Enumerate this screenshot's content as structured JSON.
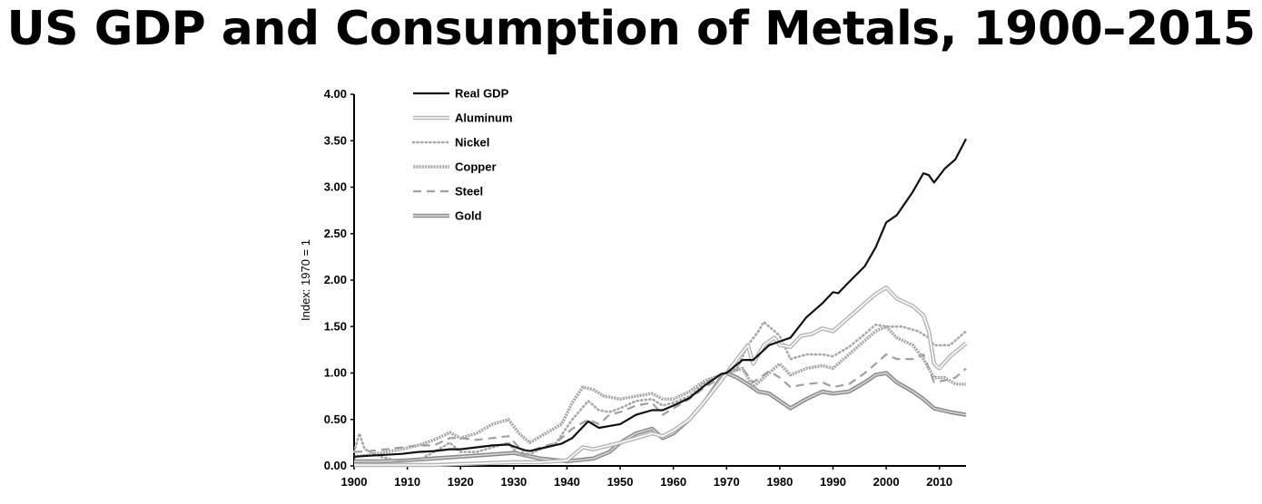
{
  "chart_data": {
    "type": "line",
    "title": "US GDP and Consumption of Metals, 1900–2015",
    "xlabel": "",
    "ylabel": "Index: 1970 = 1",
    "xlim": [
      1900,
      2015
    ],
    "ylim": [
      0,
      4
    ],
    "x_ticks": [
      "1900",
      "1910",
      "1920",
      "1930",
      "1940",
      "1950",
      "1960",
      "1970",
      "1980",
      "1990",
      "2000",
      "2010"
    ],
    "y_ticks": [
      "0.00",
      "0.50",
      "1.00",
      "1.50",
      "2.00",
      "2.50",
      "3.00",
      "3.50",
      "4.00"
    ],
    "grid": false,
    "legend_position": "top-left",
    "series": [
      {
        "name": "Real GDP",
        "style": "solid-black",
        "points": [
          [
            1900,
            0.1
          ],
          [
            1903,
            0.11
          ],
          [
            1906,
            0.12
          ],
          [
            1909,
            0.13
          ],
          [
            1912,
            0.15
          ],
          [
            1915,
            0.16
          ],
          [
            1918,
            0.18
          ],
          [
            1920,
            0.18
          ],
          [
            1923,
            0.2
          ],
          [
            1926,
            0.22
          ],
          [
            1929,
            0.23
          ],
          [
            1930,
            0.21
          ],
          [
            1932,
            0.17
          ],
          [
            1933,
            0.16
          ],
          [
            1936,
            0.2
          ],
          [
            1939,
            0.24
          ],
          [
            1941,
            0.3
          ],
          [
            1943,
            0.42
          ],
          [
            1944,
            0.48
          ],
          [
            1946,
            0.41
          ],
          [
            1948,
            0.43
          ],
          [
            1950,
            0.45
          ],
          [
            1953,
            0.55
          ],
          [
            1956,
            0.6
          ],
          [
            1958,
            0.6
          ],
          [
            1960,
            0.65
          ],
          [
            1963,
            0.73
          ],
          [
            1966,
            0.87
          ],
          [
            1969,
            0.99
          ],
          [
            1970,
            1.0
          ],
          [
            1973,
            1.14
          ],
          [
            1975,
            1.14
          ],
          [
            1978,
            1.3
          ],
          [
            1980,
            1.34
          ],
          [
            1982,
            1.38
          ],
          [
            1985,
            1.6
          ],
          [
            1988,
            1.75
          ],
          [
            1990,
            1.87
          ],
          [
            1991,
            1.86
          ],
          [
            1993,
            1.98
          ],
          [
            1996,
            2.15
          ],
          [
            1998,
            2.35
          ],
          [
            2000,
            2.62
          ],
          [
            2002,
            2.7
          ],
          [
            2005,
            2.95
          ],
          [
            2007,
            3.15
          ],
          [
            2008,
            3.13
          ],
          [
            2009,
            3.05
          ],
          [
            2011,
            3.2
          ],
          [
            2013,
            3.3
          ],
          [
            2015,
            3.52
          ]
        ]
      },
      {
        "name": "Aluminum",
        "style": "double-line",
        "points": [
          [
            1900,
            0.01
          ],
          [
            1905,
            0.01
          ],
          [
            1910,
            0.01
          ],
          [
            1915,
            0.01
          ],
          [
            1920,
            0.02
          ],
          [
            1925,
            0.03
          ],
          [
            1930,
            0.04
          ],
          [
            1935,
            0.04
          ],
          [
            1940,
            0.06
          ],
          [
            1943,
            0.2
          ],
          [
            1945,
            0.18
          ],
          [
            1948,
            0.22
          ],
          [
            1950,
            0.25
          ],
          [
            1953,
            0.3
          ],
          [
            1956,
            0.35
          ],
          [
            1958,
            0.32
          ],
          [
            1960,
            0.38
          ],
          [
            1963,
            0.5
          ],
          [
            1966,
            0.7
          ],
          [
            1969,
            0.92
          ],
          [
            1970,
            1.0
          ],
          [
            1972,
            1.15
          ],
          [
            1974,
            1.3
          ],
          [
            1975,
            1.1
          ],
          [
            1977,
            1.3
          ],
          [
            1979,
            1.38
          ],
          [
            1980,
            1.3
          ],
          [
            1982,
            1.28
          ],
          [
            1984,
            1.4
          ],
          [
            1986,
            1.42
          ],
          [
            1988,
            1.48
          ],
          [
            1990,
            1.45
          ],
          [
            1993,
            1.6
          ],
          [
            1996,
            1.75
          ],
          [
            1998,
            1.85
          ],
          [
            2000,
            1.92
          ],
          [
            2002,
            1.8
          ],
          [
            2005,
            1.72
          ],
          [
            2007,
            1.62
          ],
          [
            2008,
            1.45
          ],
          [
            2009,
            1.1
          ],
          [
            2010,
            1.05
          ],
          [
            2012,
            1.18
          ],
          [
            2015,
            1.32
          ]
        ]
      },
      {
        "name": "Nickel",
        "style": "dotted",
        "points": [
          [
            1900,
            0.15
          ],
          [
            1901,
            0.35
          ],
          [
            1902,
            0.18
          ],
          [
            1905,
            0.1
          ],
          [
            1908,
            0.06
          ],
          [
            1910,
            0.05
          ],
          [
            1912,
            0.06
          ],
          [
            1915,
            0.15
          ],
          [
            1918,
            0.25
          ],
          [
            1920,
            0.15
          ],
          [
            1923,
            0.15
          ],
          [
            1926,
            0.2
          ],
          [
            1929,
            0.25
          ],
          [
            1930,
            0.18
          ],
          [
            1932,
            0.1
          ],
          [
            1935,
            0.18
          ],
          [
            1938,
            0.25
          ],
          [
            1941,
            0.5
          ],
          [
            1944,
            0.7
          ],
          [
            1946,
            0.6
          ],
          [
            1948,
            0.58
          ],
          [
            1950,
            0.62
          ],
          [
            1953,
            0.7
          ],
          [
            1956,
            0.72
          ],
          [
            1958,
            0.65
          ],
          [
            1960,
            0.68
          ],
          [
            1963,
            0.75
          ],
          [
            1966,
            0.9
          ],
          [
            1969,
            0.98
          ],
          [
            1970,
            1.0
          ],
          [
            1972,
            1.05
          ],
          [
            1974,
            1.3
          ],
          [
            1976,
            1.45
          ],
          [
            1977,
            1.55
          ],
          [
            1979,
            1.45
          ],
          [
            1980,
            1.4
          ],
          [
            1982,
            1.15
          ],
          [
            1985,
            1.2
          ],
          [
            1988,
            1.2
          ],
          [
            1990,
            1.18
          ],
          [
            1993,
            1.28
          ],
          [
            1996,
            1.42
          ],
          [
            1998,
            1.52
          ],
          [
            2000,
            1.5
          ],
          [
            2003,
            1.5
          ],
          [
            2006,
            1.45
          ],
          [
            2008,
            1.38
          ],
          [
            2009,
            1.3
          ],
          [
            2012,
            1.3
          ],
          [
            2015,
            1.45
          ]
        ]
      },
      {
        "name": "Copper",
        "style": "beaded",
        "points": [
          [
            1900,
            0.1
          ],
          [
            1903,
            0.12
          ],
          [
            1906,
            0.15
          ],
          [
            1909,
            0.18
          ],
          [
            1912,
            0.22
          ],
          [
            1915,
            0.28
          ],
          [
            1918,
            0.36
          ],
          [
            1920,
            0.3
          ],
          [
            1923,
            0.35
          ],
          [
            1926,
            0.45
          ],
          [
            1929,
            0.5
          ],
          [
            1931,
            0.35
          ],
          [
            1933,
            0.25
          ],
          [
            1936,
            0.35
          ],
          [
            1939,
            0.45
          ],
          [
            1941,
            0.68
          ],
          [
            1943,
            0.85
          ],
          [
            1945,
            0.82
          ],
          [
            1947,
            0.75
          ],
          [
            1950,
            0.72
          ],
          [
            1953,
            0.75
          ],
          [
            1956,
            0.78
          ],
          [
            1958,
            0.72
          ],
          [
            1960,
            0.72
          ],
          [
            1963,
            0.8
          ],
          [
            1966,
            0.92
          ],
          [
            1969,
            0.98
          ],
          [
            1970,
            1.0
          ],
          [
            1973,
            1.05
          ],
          [
            1975,
            0.85
          ],
          [
            1978,
            1.0
          ],
          [
            1980,
            1.1
          ],
          [
            1982,
            0.98
          ],
          [
            1985,
            1.05
          ],
          [
            1988,
            1.08
          ],
          [
            1990,
            1.05
          ],
          [
            1993,
            1.2
          ],
          [
            1996,
            1.35
          ],
          [
            1998,
            1.45
          ],
          [
            2000,
            1.5
          ],
          [
            2002,
            1.38
          ],
          [
            2005,
            1.3
          ],
          [
            2007,
            1.15
          ],
          [
            2009,
            0.95
          ],
          [
            2011,
            0.95
          ],
          [
            2013,
            0.88
          ],
          [
            2015,
            0.88
          ]
        ]
      },
      {
        "name": "Steel",
        "style": "dashed",
        "points": [
          [
            1900,
            0.15
          ],
          [
            1903,
            0.16
          ],
          [
            1906,
            0.18
          ],
          [
            1909,
            0.2
          ],
          [
            1912,
            0.22
          ],
          [
            1915,
            0.22
          ],
          [
            1918,
            0.3
          ],
          [
            1920,
            0.3
          ],
          [
            1923,
            0.28
          ],
          [
            1926,
            0.3
          ],
          [
            1929,
            0.32
          ],
          [
            1931,
            0.2
          ],
          [
            1932,
            0.12
          ],
          [
            1935,
            0.2
          ],
          [
            1938,
            0.25
          ],
          [
            1941,
            0.4
          ],
          [
            1944,
            0.5
          ],
          [
            1946,
            0.45
          ],
          [
            1948,
            0.55
          ],
          [
            1950,
            0.58
          ],
          [
            1953,
            0.65
          ],
          [
            1956,
            0.68
          ],
          [
            1958,
            0.55
          ],
          [
            1960,
            0.62
          ],
          [
            1963,
            0.72
          ],
          [
            1966,
            0.85
          ],
          [
            1969,
            0.95
          ],
          [
            1970,
            1.0
          ],
          [
            1973,
            1.05
          ],
          [
            1975,
            0.9
          ],
          [
            1978,
            1.02
          ],
          [
            1980,
            0.95
          ],
          [
            1982,
            0.85
          ],
          [
            1985,
            0.88
          ],
          [
            1988,
            0.9
          ],
          [
            1990,
            0.85
          ],
          [
            1993,
            0.88
          ],
          [
            1996,
            1.0
          ],
          [
            1998,
            1.1
          ],
          [
            2000,
            1.2
          ],
          [
            2002,
            1.15
          ],
          [
            2005,
            1.15
          ],
          [
            2007,
            1.2
          ],
          [
            2009,
            0.9
          ],
          [
            2011,
            0.92
          ],
          [
            2013,
            0.95
          ],
          [
            2015,
            1.05
          ]
        ]
      },
      {
        "name": "Gold",
        "style": "thick-double",
        "points": [
          [
            1900,
            0.05
          ],
          [
            1905,
            0.05
          ],
          [
            1910,
            0.06
          ],
          [
            1915,
            0.08
          ],
          [
            1920,
            0.1
          ],
          [
            1925,
            0.12
          ],
          [
            1930,
            0.14
          ],
          [
            1935,
            0.08
          ],
          [
            1940,
            0.05
          ],
          [
            1945,
            0.08
          ],
          [
            1948,
            0.15
          ],
          [
            1950,
            0.25
          ],
          [
            1953,
            0.35
          ],
          [
            1956,
            0.4
          ],
          [
            1958,
            0.3
          ],
          [
            1960,
            0.35
          ],
          [
            1963,
            0.5
          ],
          [
            1966,
            0.7
          ],
          [
            1969,
            0.95
          ],
          [
            1970,
            1.0
          ],
          [
            1972,
            0.95
          ],
          [
            1974,
            0.88
          ],
          [
            1976,
            0.8
          ],
          [
            1978,
            0.78
          ],
          [
            1980,
            0.7
          ],
          [
            1982,
            0.62
          ],
          [
            1985,
            0.72
          ],
          [
            1988,
            0.8
          ],
          [
            1990,
            0.78
          ],
          [
            1993,
            0.8
          ],
          [
            1996,
            0.9
          ],
          [
            1998,
            0.98
          ],
          [
            2000,
            1.0
          ],
          [
            2002,
            0.9
          ],
          [
            2005,
            0.8
          ],
          [
            2007,
            0.72
          ],
          [
            2009,
            0.62
          ],
          [
            2012,
            0.58
          ],
          [
            2015,
            0.55
          ]
        ]
      }
    ]
  }
}
